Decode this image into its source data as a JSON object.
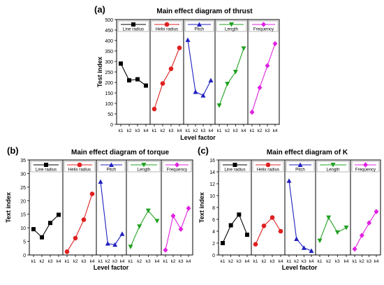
{
  "chart_data": [
    {
      "type": "line",
      "label": "(a)",
      "title": "Main effect diagram of thrust",
      "ylabel": "Test index",
      "xlabel": "Level factor",
      "categories": [
        "k1",
        "k2",
        "k3",
        "k4"
      ],
      "ylim": [
        0,
        500
      ],
      "yticks": [
        0,
        50,
        100,
        150,
        200,
        250,
        300,
        350,
        400,
        450,
        500
      ],
      "series": [
        {
          "name": "Line radius",
          "color": "#000000",
          "marker": "square",
          "values": [
            290,
            210,
            215,
            185
          ]
        },
        {
          "name": "Helix radius",
          "color": "#e02020",
          "marker": "circle",
          "values": [
            73,
            195,
            265,
            365
          ]
        },
        {
          "name": "Pitch",
          "color": "#2020c0",
          "marker": "triangle-up",
          "values": [
            403,
            155,
            138,
            210
          ]
        },
        {
          "name": "Length",
          "color": "#20a020",
          "marker": "triangle-down",
          "values": [
            90,
            193,
            250,
            362
          ]
        },
        {
          "name": "Frequency",
          "color": "#e020e0",
          "marker": "diamond",
          "values": [
            58,
            175,
            280,
            385
          ]
        }
      ]
    },
    {
      "type": "line",
      "label": "(b)",
      "title": "Main effect diagram of torque",
      "ylabel": "Text index",
      "xlabel": "Level factor",
      "categories": [
        "k1",
        "k2",
        "k3",
        "k4"
      ],
      "ylim": [
        0,
        35
      ],
      "yticks": [
        0,
        5,
        10,
        15,
        20,
        25,
        30,
        35
      ],
      "series": [
        {
          "name": "Line radius",
          "color": "#000000",
          "marker": "square",
          "values": [
            9.5,
            6.5,
            11.8,
            14.8
          ]
        },
        {
          "name": "Helix radius",
          "color": "#e02020",
          "marker": "circle",
          "values": [
            1.2,
            6.2,
            13,
            22.5
          ]
        },
        {
          "name": "Pitch",
          "color": "#2020c0",
          "marker": "triangle-up",
          "values": [
            27,
            4.2,
            3.8,
            7.8
          ]
        },
        {
          "name": "Length",
          "color": "#20a020",
          "marker": "triangle-down",
          "values": [
            3,
            10.5,
            16.3,
            12.5
          ]
        },
        {
          "name": "Frequency",
          "color": "#e020e0",
          "marker": "diamond",
          "values": [
            1.8,
            14.4,
            9.5,
            17.2
          ]
        }
      ]
    },
    {
      "type": "line",
      "label": "(c)",
      "title": "Main effect diagram of K",
      "ylabel": "Text index",
      "xlabel": "Level factor",
      "categories": [
        "k1",
        "k2",
        "k3",
        "k4"
      ],
      "ylim": [
        0,
        16
      ],
      "yticks": [
        0,
        2,
        4,
        6,
        8,
        10,
        12,
        14,
        16
      ],
      "series": [
        {
          "name": "Line radius",
          "color": "#000000",
          "marker": "square",
          "values": [
            2.0,
            5.0,
            6.8,
            3.4
          ]
        },
        {
          "name": "Helix radius",
          "color": "#e02020",
          "marker": "circle",
          "values": [
            1.8,
            4.9,
            6.3,
            4.0
          ]
        },
        {
          "name": "Pitch",
          "color": "#2020c0",
          "marker": "triangle-up",
          "values": [
            12.5,
            2.7,
            1.2,
            0.7
          ]
        },
        {
          "name": "Length",
          "color": "#20a020",
          "marker": "triangle-down",
          "values": [
            2.4,
            6.3,
            3.8,
            4.6
          ]
        },
        {
          "name": "Frequency",
          "color": "#e020e0",
          "marker": "diamond",
          "values": [
            1.0,
            3.3,
            5.4,
            7.3
          ]
        }
      ]
    }
  ]
}
